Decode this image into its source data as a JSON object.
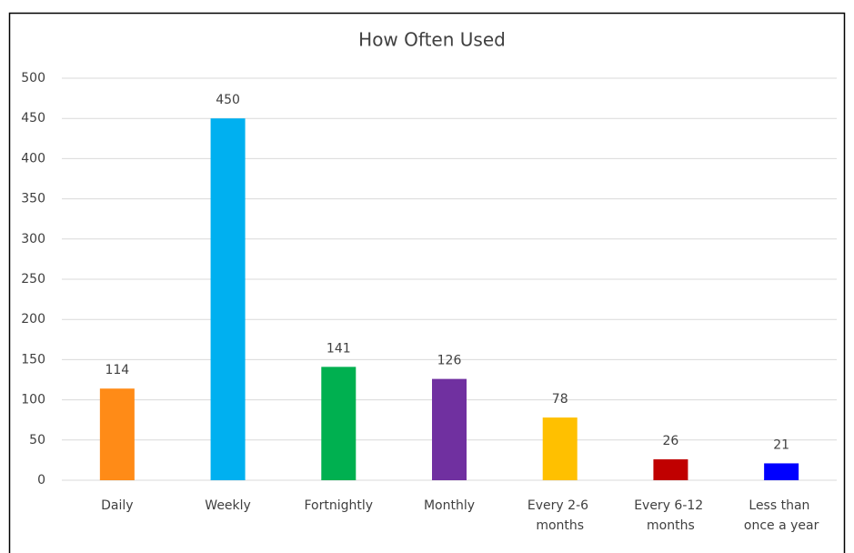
{
  "chart_data": {
    "type": "bar",
    "title": "How Often Used",
    "categories": [
      "Daily",
      "Weekly",
      "Fortnightly",
      "Monthly",
      "Every 2-6 months",
      "Every 6-12 months",
      "Less than once a year"
    ],
    "values": [
      114,
      450,
      141,
      126,
      78,
      26,
      21
    ],
    "colors": [
      "#ff8b17",
      "#00b0f0",
      "#00b050",
      "#7030a0",
      "#ffc000",
      "#c00000",
      "#0000ff"
    ],
    "ylim": [
      0,
      500
    ],
    "yticks": [
      0,
      50,
      100,
      150,
      200,
      250,
      300,
      350,
      400,
      450,
      500
    ],
    "grid": true
  }
}
